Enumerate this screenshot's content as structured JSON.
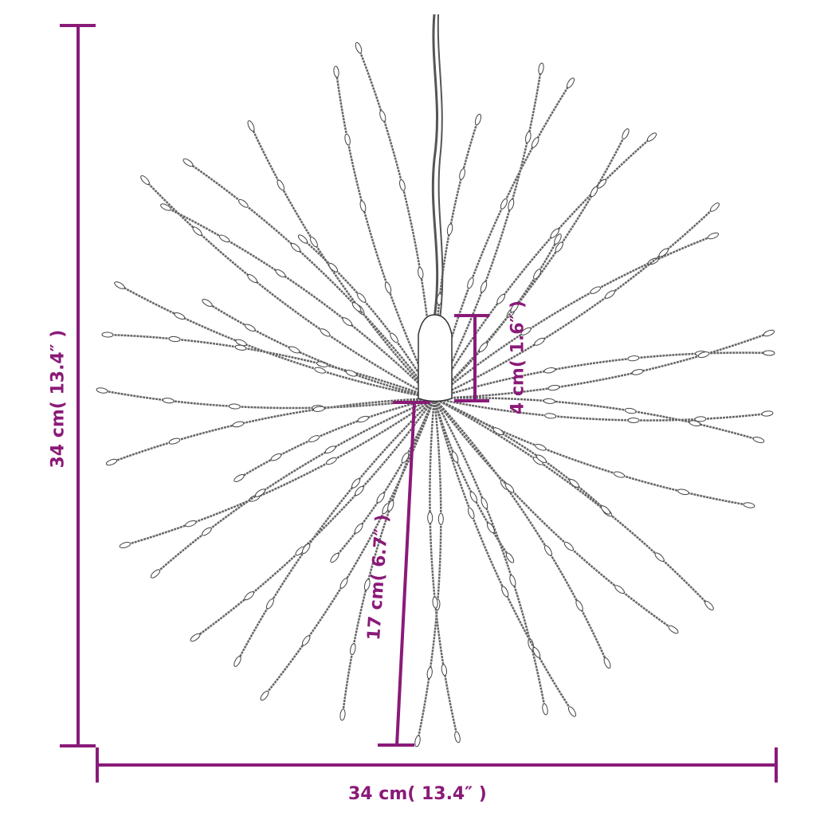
{
  "colors": {
    "dimension": "#8a1a78",
    "wire": "#555555",
    "background": "#ffffff"
  },
  "dimensions": {
    "height_total": "34 cm( 13.4″ )",
    "width_total": "34 cm( 13.4″ )",
    "cap_height": "4 cm( 1.6″ )",
    "ray_length": "17 cm( 6.7″ )"
  }
}
